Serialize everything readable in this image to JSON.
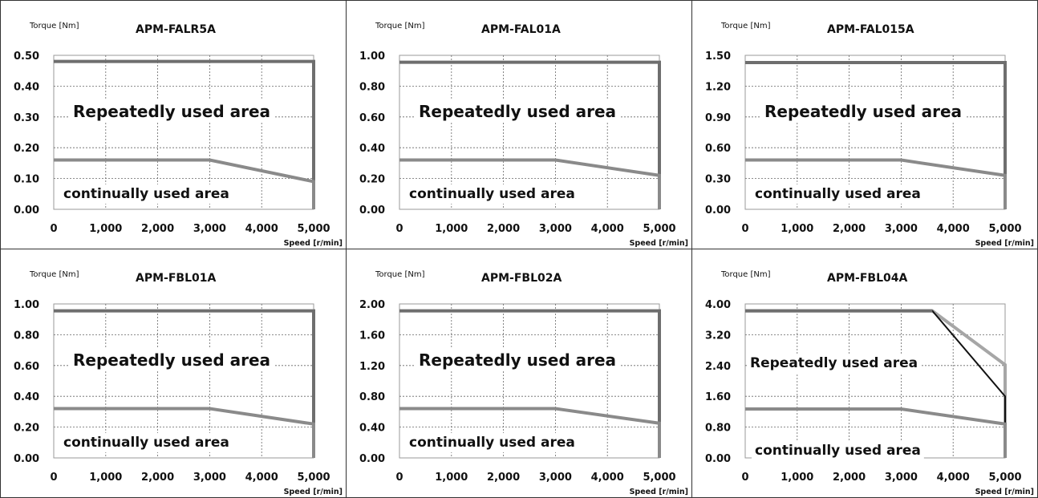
{
  "chart_data": [
    {
      "type": "line",
      "title": "APM-FALR5A",
      "ylabel": "Torque [Nm]",
      "xlabel": "Speed [r/min]",
      "yticks": [
        "0.00",
        "0.10",
        "0.20",
        "0.30",
        "0.40",
        "0.50"
      ],
      "xticks": [
        "0",
        "1,000",
        "2,000",
        "3,000",
        "4,000",
        "5,000"
      ],
      "xlim": [
        0,
        5000
      ],
      "ylim": [
        0,
        0.5
      ],
      "repeated_label": "Repeatedly used area",
      "continual_label": "continually used area",
      "series": [
        {
          "x": [
            0,
            5000,
            5000
          ],
          "y": [
            0.48,
            0.48,
            0
          ],
          "color": "#6e6e6e"
        },
        {
          "x": [
            0,
            3000,
            5000,
            5000
          ],
          "y": [
            0.16,
            0.16,
            0.09,
            0
          ],
          "color": "#8a8a8a"
        }
      ]
    },
    {
      "type": "line",
      "title": "APM-FAL01A",
      "ylabel": "Torque [Nm]",
      "xlabel": "Speed [r/min]",
      "yticks": [
        "0.00",
        "0.20",
        "0.40",
        "0.60",
        "0.80",
        "1.00"
      ],
      "xticks": [
        "0",
        "1,000",
        "2,000",
        "3,000",
        "4,000",
        "5,000"
      ],
      "xlim": [
        0,
        5000
      ],
      "ylim": [
        0,
        1.0
      ],
      "repeated_label": "Repeatedly used area",
      "continual_label": "continually used area",
      "series": [
        {
          "x": [
            0,
            5000,
            5000
          ],
          "y": [
            0.955,
            0.955,
            0
          ],
          "color": "#6e6e6e"
        },
        {
          "x": [
            0,
            3000,
            5000,
            5000
          ],
          "y": [
            0.32,
            0.32,
            0.22,
            0
          ],
          "color": "#8a8a8a"
        }
      ]
    },
    {
      "type": "line",
      "title": "APM-FAL015A",
      "ylabel": "Torque [Nm]",
      "xlabel": "Speed [r/min]",
      "yticks": [
        "0.00",
        "0.30",
        "0.60",
        "0.90",
        "1.20",
        "1.50"
      ],
      "xticks": [
        "0",
        "1,000",
        "2,000",
        "3,000",
        "4,000",
        "5,000"
      ],
      "xlim": [
        0,
        5000
      ],
      "ylim": [
        0,
        1.5
      ],
      "repeated_label": "Repeatedly used area",
      "continual_label": "continually used area",
      "series": [
        {
          "x": [
            0,
            5000,
            5000
          ],
          "y": [
            1.43,
            1.43,
            0
          ],
          "color": "#6e6e6e"
        },
        {
          "x": [
            0,
            3000,
            5000,
            5000
          ],
          "y": [
            0.48,
            0.48,
            0.33,
            0
          ],
          "color": "#8a8a8a"
        }
      ]
    },
    {
      "type": "line",
      "title": "APM-FBL01A",
      "ylabel": "Torque [Nm]",
      "xlabel": "Speed [r/min]",
      "yticks": [
        "0.00",
        "0.20",
        "0.40",
        "0.60",
        "0.80",
        "1.00"
      ],
      "xticks": [
        "0",
        "1,000",
        "2,000",
        "3,000",
        "4,000",
        "5,000"
      ],
      "xlim": [
        0,
        5000
      ],
      "ylim": [
        0,
        1.0
      ],
      "repeated_label": "Repeatedly used area",
      "continual_label": "continually used area",
      "series": [
        {
          "x": [
            0,
            5000,
            5000
          ],
          "y": [
            0.955,
            0.955,
            0
          ],
          "color": "#6e6e6e"
        },
        {
          "x": [
            0,
            3000,
            5000,
            5000
          ],
          "y": [
            0.32,
            0.32,
            0.22,
            0
          ],
          "color": "#8a8a8a"
        }
      ]
    },
    {
      "type": "line",
      "title": "APM-FBL02A",
      "ylabel": "Torque [Nm]",
      "xlabel": "Speed [r/min]",
      "yticks": [
        "0.00",
        "0.40",
        "0.80",
        "1.20",
        "1.60",
        "2.00"
      ],
      "xticks": [
        "0",
        "1,000",
        "2,000",
        "3,000",
        "4,000",
        "5,000"
      ],
      "xlim": [
        0,
        5000
      ],
      "ylim": [
        0,
        2.0
      ],
      "repeated_label": "Repeatedly used area",
      "continual_label": "continually used area",
      "series": [
        {
          "x": [
            0,
            5000,
            5000
          ],
          "y": [
            1.91,
            1.91,
            0
          ],
          "color": "#6e6e6e"
        },
        {
          "x": [
            0,
            3000,
            5000,
            5000
          ],
          "y": [
            0.64,
            0.64,
            0.45,
            0
          ],
          "color": "#8a8a8a"
        }
      ]
    },
    {
      "type": "line",
      "title": "APM-FBL04A",
      "ylabel": "Torque [Nm]",
      "xlabel": "Speed [r/min]",
      "yticks": [
        "0.00",
        "0.80",
        "1.60",
        "2.40",
        "3.20",
        "4.00"
      ],
      "xticks": [
        "0",
        "1,000",
        "2,000",
        "3,000",
        "4,000",
        "5,000"
      ],
      "xlim": [
        0,
        5000
      ],
      "ylim": [
        0,
        4.0
      ],
      "repeated_label": "Repeatedly used area",
      "continual_label": "continually used area",
      "series": [
        {
          "x": [
            0,
            3600,
            5000,
            5000
          ],
          "y": [
            3.82,
            3.82,
            2.42,
            0
          ],
          "color": "#a6a6a6"
        },
        {
          "x": [
            0,
            3600,
            5000,
            5000
          ],
          "y": [
            3.82,
            3.82,
            1.6,
            0
          ],
          "color": "#111111"
        },
        {
          "x": [
            0,
            3600
          ],
          "y": [
            3.82,
            3.82
          ],
          "color": "#6e6e6e"
        },
        {
          "x": [
            0,
            3000,
            5000,
            5000
          ],
          "y": [
            1.27,
            1.27,
            0.88,
            0
          ],
          "color": "#8a8a8a"
        }
      ]
    }
  ]
}
